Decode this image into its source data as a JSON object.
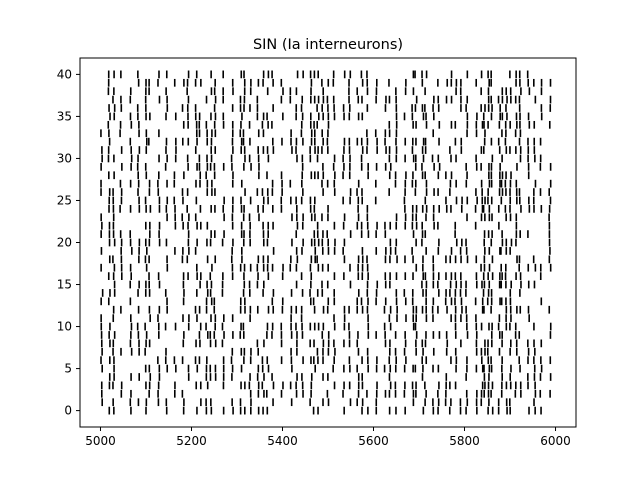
{
  "chart_data": {
    "type": "raster",
    "title": "SIN (Ia interneurons)",
    "xlabel": "",
    "ylabel": "",
    "xlim": [
      4955,
      6045
    ],
    "ylim": [
      -1.95,
      41.95
    ],
    "x_ticks": [
      5000,
      5200,
      5400,
      5600,
      5800,
      6000
    ],
    "y_ticks": [
      0,
      5,
      10,
      15,
      20,
      25,
      30,
      35,
      40
    ],
    "x_tick_labels": [
      "5000",
      "5200",
      "5400",
      "5600",
      "5800",
      "6000"
    ],
    "y_tick_labels": [
      "0",
      "5",
      "10",
      "15",
      "20",
      "25",
      "30",
      "35",
      "40"
    ],
    "neuron_count": 41,
    "time_range": [
      5000,
      6000
    ],
    "grid": false,
    "spike_color": "#000000",
    "note_spikes": "Spike times per neuron are rendered procedurally; dense vertical spike events span 5000-6000 ms for neurons 0-40."
  }
}
